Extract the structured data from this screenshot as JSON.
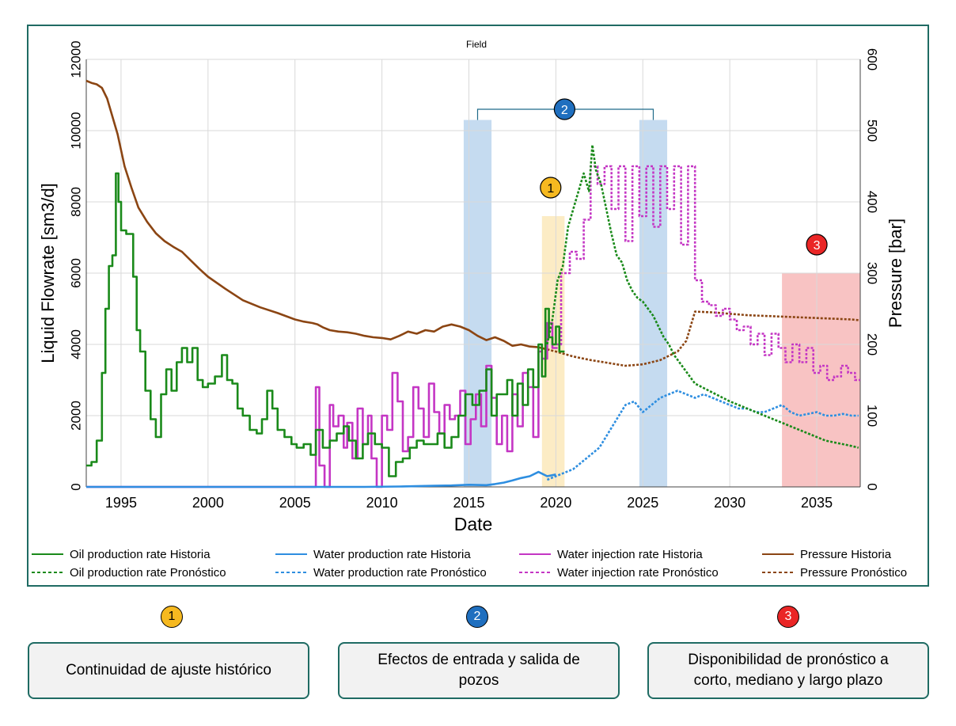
{
  "chart_data": {
    "type": "line",
    "title": "Field",
    "xlabel": "Date",
    "ylabel_left": "Liquid Flowrate [sm3/d]",
    "ylabel_right": "Pressure [bar]",
    "xlim": [
      1993,
      2037.5
    ],
    "ylim_left": [
      0,
      12000
    ],
    "ylim_right": [
      0,
      600
    ],
    "x_ticks": [
      "1995",
      "2000",
      "2005",
      "2010",
      "2015",
      "2020",
      "2025",
      "2030",
      "2035"
    ],
    "y_ticks_left": [
      "0",
      "2000",
      "4000",
      "6000",
      "8000",
      "10000",
      "12000"
    ],
    "y_ticks_right": [
      "0",
      "100",
      "200",
      "300",
      "400",
      "500",
      "600"
    ],
    "grid": true,
    "legend_position": "bottom",
    "legend": [
      {
        "label": "Oil production rate Historia",
        "color": "#1a8a1a",
        "dash": false
      },
      {
        "label": "Water production rate Historia",
        "color": "#2e8ee0",
        "dash": false
      },
      {
        "label": "Water injection rate Historia",
        "color": "#c436c4",
        "dash": false
      },
      {
        "label": "Pressure Historia",
        "color": "#8b4513",
        "dash": false
      },
      {
        "label": "Oil production rate Pronóstico",
        "color": "#1a8a1a",
        "dash": true
      },
      {
        "label": "Water production rate Pronóstico",
        "color": "#2e8ee0",
        "dash": true
      },
      {
        "label": "Water injection rate Pronóstico",
        "color": "#c436c4",
        "dash": true
      },
      {
        "label": "Pressure Pronóstico",
        "color": "#8b4513",
        "dash": true
      }
    ],
    "series": [
      {
        "name": "Oil production rate Historia",
        "axis": "left",
        "color": "#1a8a1a",
        "dash": false,
        "step": true,
        "x": [
          1993,
          1993.3,
          1993.6,
          1993.9,
          1994.1,
          1994.3,
          1994.5,
          1994.7,
          1994.85,
          1995,
          1995.3,
          1995.7,
          1995.9,
          1996.1,
          1996.4,
          1996.7,
          1997,
          1997.3,
          1997.6,
          1997.9,
          1998.2,
          1998.5,
          1998.8,
          1999.1,
          1999.4,
          1999.7,
          2000,
          2000.4,
          2000.8,
          2001.1,
          2001.4,
          2001.7,
          2002,
          2002.4,
          2002.8,
          2003.1,
          2003.4,
          2003.7,
          2004,
          2004.4,
          2004.8,
          2005.1,
          2005.5,
          2005.9,
          2006.2,
          2006.6,
          2007,
          2007.4,
          2007.8,
          2008.1,
          2008.5,
          2008.9,
          2009.2,
          2009.6,
          2010,
          2010.4,
          2010.8,
          2011.2,
          2011.6,
          2012,
          2012.4,
          2012.8,
          2013.2,
          2013.6,
          2014,
          2014.4,
          2014.8,
          2015.2,
          2015.6,
          2016,
          2016.3,
          2016.6,
          2016.9,
          2017.2,
          2017.5,
          2017.8,
          2018.1,
          2018.4,
          2018.7,
          2019,
          2019.2,
          2019.4,
          2019.6,
          2019.8,
          2020,
          2020.2
        ],
        "y": [
          600,
          700,
          1300,
          3200,
          5000,
          6200,
          6500,
          8800,
          8000,
          7200,
          7100,
          5900,
          4400,
          3800,
          2700,
          1900,
          1400,
          2600,
          3300,
          2700,
          3500,
          3900,
          3500,
          3900,
          3000,
          2800,
          2900,
          3100,
          3700,
          3000,
          2900,
          2200,
          2000,
          1600,
          1500,
          1900,
          2700,
          2200,
          1600,
          1400,
          1200,
          1100,
          1200,
          900,
          1600,
          1100,
          1300,
          1500,
          1700,
          1300,
          800,
          1200,
          1500,
          1200,
          1100,
          300,
          700,
          800,
          1100,
          1300,
          1200,
          1200,
          1500,
          1100,
          1400,
          2000,
          2600,
          2300,
          2700,
          3300,
          2000,
          2600,
          2600,
          3000,
          2000,
          2900,
          2300,
          3300,
          2800,
          4000,
          3100,
          5000,
          4200,
          4000,
          4500,
          3800
        ]
      },
      {
        "name": "Oil production rate Pronóstico",
        "axis": "left",
        "color": "#1a8a1a",
        "dash": true,
        "step": false,
        "x": [
          2019.5,
          2019.8,
          2020.1,
          2020.4,
          2020.7,
          2021,
          2021.3,
          2021.6,
          2021.9,
          2022.1,
          2022.3,
          2022.6,
          2022.9,
          2023.2,
          2023.5,
          2023.8,
          2024.1,
          2024.4,
          2024.7,
          2025,
          2025.3,
          2025.6,
          2025.9,
          2026.2,
          2026.5,
          2026.8,
          2027.1,
          2027.4,
          2027.7,
          2028,
          2028.4,
          2028.8,
          2029.2,
          2029.6,
          2030,
          2030.5,
          2031,
          2031.5,
          2032,
          2032.5,
          2033,
          2033.5,
          2034,
          2034.5,
          2035,
          2035.5,
          2036,
          2036.5,
          2037,
          2037.4
        ],
        "y": [
          4000,
          4700,
          5800,
          6200,
          7300,
          7800,
          8300,
          8800,
          8300,
          9600,
          8900,
          8500,
          7800,
          7100,
          6500,
          6300,
          5800,
          5500,
          5300,
          5200,
          5000,
          4800,
          4500,
          4200,
          4000,
          3700,
          3500,
          3300,
          3100,
          2900,
          2800,
          2700,
          2600,
          2500,
          2400,
          2300,
          2200,
          2100,
          2000,
          1900,
          1800,
          1700,
          1600,
          1500,
          1400,
          1300,
          1250,
          1200,
          1150,
          1100
        ]
      },
      {
        "name": "Water production rate Historia",
        "axis": "left",
        "color": "#2e8ee0",
        "dash": false,
        "step": false,
        "x": [
          1993,
          2000,
          2005,
          2009,
          2011,
          2013,
          2014,
          2015,
          2016,
          2016.5,
          2017,
          2017.5,
          2018,
          2018.5,
          2019,
          2019.5,
          2020
        ],
        "y": [
          0,
          0,
          0,
          0,
          10,
          30,
          40,
          60,
          50,
          80,
          120,
          180,
          250,
          300,
          420,
          300,
          350
        ]
      },
      {
        "name": "Water production rate Pronóstico",
        "axis": "left",
        "color": "#2e8ee0",
        "dash": true,
        "step": false,
        "x": [
          2019.5,
          2020,
          2020.5,
          2021,
          2021.5,
          2022,
          2022.5,
          2023,
          2023.5,
          2024,
          2024.5,
          2025,
          2025.5,
          2026,
          2026.5,
          2027,
          2027.5,
          2028,
          2028.5,
          2029,
          2029.5,
          2030,
          2030.5,
          2031,
          2031.5,
          2032,
          2032.5,
          2033,
          2033.5,
          2034,
          2034.5,
          2035,
          2035.5,
          2036,
          2036.5,
          2037,
          2037.4
        ],
        "y": [
          200,
          300,
          400,
          500,
          700,
          900,
          1100,
          1500,
          1900,
          2300,
          2400,
          2100,
          2300,
          2500,
          2600,
          2700,
          2600,
          2500,
          2600,
          2500,
          2400,
          2300,
          2200,
          2200,
          2100,
          2100,
          2200,
          2300,
          2100,
          2000,
          2050,
          2100,
          2000,
          2000,
          2050,
          2000,
          2000
        ]
      },
      {
        "name": "Water injection rate Historia",
        "axis": "left",
        "color": "#c436c4",
        "dash": false,
        "step": true,
        "x": [
          1993,
          2006.2,
          2006.4,
          2006.7,
          2007,
          2007.2,
          2007.5,
          2007.8,
          2008,
          2008.3,
          2008.6,
          2008.9,
          2009.2,
          2009.4,
          2009.7,
          2010,
          2010.3,
          2010.6,
          2010.9,
          2011.2,
          2011.5,
          2011.8,
          2012.1,
          2012.4,
          2012.7,
          2013,
          2013.3,
          2013.6,
          2013.9,
          2014.2,
          2014.5,
          2014.8,
          2015.1,
          2015.4,
          2015.7,
          2016,
          2016.3,
          2016.6,
          2016.9,
          2017.2,
          2017.5,
          2017.8,
          2018.1,
          2018.4,
          2018.7,
          2019,
          2019.2,
          2019.5,
          2019.8
        ],
        "y": [
          0,
          2800,
          600,
          0,
          2300,
          1700,
          2000,
          1100,
          1800,
          800,
          2200,
          1200,
          2000,
          800,
          0,
          2000,
          1600,
          3200,
          2400,
          1000,
          1400,
          2800,
          2200,
          1400,
          2900,
          2100,
          1500,
          2300,
          1900,
          2000,
          2700,
          1200,
          1900,
          2600,
          1700,
          3400,
          2500,
          1200,
          2000,
          1000,
          2600,
          1700,
          3200,
          2800,
          1400,
          3800,
          3600,
          4600,
          3900
        ]
      },
      {
        "name": "Water injection rate Pronóstico",
        "axis": "left",
        "color": "#c436c4",
        "dash": true,
        "step": true,
        "x": [
          2019.8,
          2020.3,
          2020.8,
          2021.2,
          2021.6,
          2022,
          2022.4,
          2022.8,
          2023.2,
          2023.6,
          2024,
          2024.4,
          2024.8,
          2025.2,
          2025.6,
          2026,
          2026.4,
          2026.8,
          2027.2,
          2027.6,
          2028,
          2028.4,
          2028.8,
          2029.2,
          2029.6,
          2030,
          2030.4,
          2030.8,
          2031.2,
          2031.6,
          2032,
          2032.4,
          2032.8,
          2033.2,
          2033.6,
          2034,
          2034.4,
          2034.8,
          2035.2,
          2035.6,
          2036,
          2036.4,
          2036.8,
          2037.2
        ],
        "y": [
          4000,
          6000,
          6600,
          6400,
          7500,
          9000,
          8500,
          9000,
          7800,
          9000,
          6900,
          9000,
          7600,
          9000,
          7300,
          9000,
          7800,
          9000,
          6800,
          9000,
          5800,
          5200,
          5100,
          4800,
          5000,
          4700,
          4400,
          4500,
          4000,
          4300,
          3700,
          4300,
          3900,
          3500,
          4000,
          3500,
          3900,
          3200,
          3400,
          3000,
          3100,
          3400,
          3200,
          3000
        ]
      },
      {
        "name": "Pressure Historia",
        "axis": "right",
        "color": "#8b4513",
        "dash": false,
        "step": false,
        "x": [
          1993,
          1993.3,
          1993.6,
          1993.9,
          1994.2,
          1994.5,
          1994.8,
          1995.2,
          1995.6,
          1996,
          1996.5,
          1997,
          1997.5,
          1998,
          1998.5,
          1999,
          1999.5,
          2000,
          2001,
          2002,
          2003,
          2004,
          2005,
          2005.5,
          2006,
          2006.3,
          2006.6,
          2007,
          2007.5,
          2008,
          2008.5,
          2009,
          2009.5,
          2010,
          2010.5,
          2011,
          2011.5,
          2012,
          2012.5,
          2013,
          2013.5,
          2014,
          2014.5,
          2015,
          2015.5,
          2016,
          2016.5,
          2017,
          2017.5,
          2018,
          2018.5,
          2019,
          2019.5
        ],
        "y": [
          570,
          567,
          565,
          560,
          545,
          520,
          495,
          450,
          420,
          392,
          372,
          356,
          345,
          337,
          330,
          318,
          306,
          295,
          278,
          262,
          252,
          244,
          235,
          232,
          230,
          228,
          224,
          220,
          218,
          217,
          215,
          212,
          210,
          209,
          207,
          212,
          218,
          215,
          220,
          218,
          225,
          228,
          225,
          220,
          212,
          206,
          210,
          205,
          198,
          200,
          197,
          196,
          193
        ]
      },
      {
        "name": "Pressure Pronóstico",
        "axis": "right",
        "color": "#8b4513",
        "dash": true,
        "step": false,
        "x": [
          2019.5,
          2020,
          2021,
          2022,
          2023,
          2024,
          2025,
          2026,
          2027,
          2027.5,
          2028,
          2029,
          2030,
          2031,
          2032,
          2033,
          2034,
          2035,
          2036,
          2037,
          2037.4
        ],
        "y": [
          193,
          190,
          183,
          178,
          174,
          170,
          172,
          178,
          190,
          205,
          246,
          245,
          243,
          241,
          240,
          239,
          238,
          237,
          236,
          235,
          234
        ]
      }
    ],
    "highlight_regions": [
      {
        "x0": 2014.7,
        "x1": 2016.3,
        "y_top_left": 10300,
        "color": "#9ec3e6",
        "opacity": 0.6
      },
      {
        "x0": 2024.8,
        "x1": 2026.4,
        "y_top_left": 10300,
        "color": "#9ec3e6",
        "opacity": 0.6
      },
      {
        "x0": 2019.2,
        "x1": 2020.5,
        "y_top_left": 7600,
        "color": "#fbe2a6",
        "opacity": 0.65
      },
      {
        "x0": 2033,
        "x1": 2037.5,
        "y_top_left": 6000,
        "color": "#f4a3a3",
        "opacity": 0.65
      }
    ],
    "markers": [
      {
        "label": "1",
        "x": 2019.7,
        "y_left": 8400,
        "color": "#f6b920"
      },
      {
        "label": "2",
        "x": 2020.5,
        "y_left": 10600,
        "color": "#1f6fbf",
        "bracket_x": [
          2015.5,
          2025.6
        ]
      },
      {
        "label": "3",
        "x": 2035,
        "y_left": 6800,
        "color": "#ea2626"
      }
    ]
  },
  "annotations": [
    {
      "number": "1",
      "color": "#f6b920",
      "text": "Continuidad de ajuste histórico"
    },
    {
      "number": "2",
      "color": "#1f6fbf",
      "text": "Efectos de entrada y salida de pozos"
    },
    {
      "number": "3",
      "color": "#ea2626",
      "text": "Disponibilidad de pronóstico a corto, mediano y largo plazo"
    }
  ]
}
